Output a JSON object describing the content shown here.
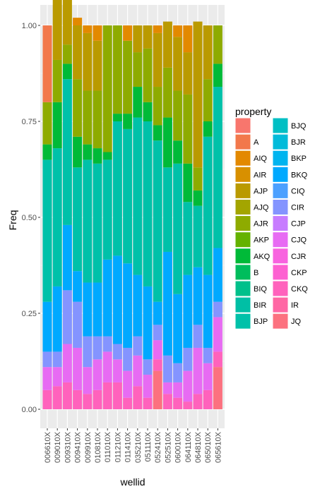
{
  "chart_data": {
    "type": "bar",
    "stacked": true,
    "xlabel": "wellid",
    "ylabel": "Freq",
    "ylim": [
      0,
      1
    ],
    "yticks": [
      "0.00",
      "0.25",
      "0.50",
      "0.75",
      "1.00"
    ],
    "grid": true,
    "legend_position": "right",
    "legend_title": "property",
    "categories": [
      "006610X",
      "009010X",
      "009310X",
      "009410X",
      "009910X",
      "010810X",
      "011010X",
      "011210X",
      "011410X",
      "035210X",
      "051110X",
      "052410X",
      "052510X",
      "060010X",
      "064110X",
      "064810X",
      "065010X",
      "065610X"
    ],
    "series": [
      {
        "name": "",
        "color": "#F8766D",
        "values": [
          0,
          0,
          0,
          0,
          0,
          0,
          0,
          0,
          0,
          0,
          0,
          0,
          0,
          0,
          0,
          0,
          0,
          0
        ]
      },
      {
        "name": "A",
        "color": "#F2784B",
        "values": [
          0.2,
          0,
          0,
          0,
          0,
          0,
          0,
          0,
          0,
          0,
          0,
          0,
          0,
          0,
          0,
          0,
          0,
          0
        ]
      },
      {
        "name": "AIQ",
        "color": "#E38900",
        "values": [
          0,
          0.03,
          0.03,
          0.02,
          0.02,
          0.04,
          0,
          0,
          0.04,
          0,
          0,
          0.02,
          0,
          0.03,
          0.07,
          0,
          0,
          0
        ]
      },
      {
        "name": "AIR",
        "color": "#D89000",
        "values": [
          0,
          0,
          0,
          0,
          0,
          0,
          0,
          0,
          0,
          0,
          0,
          0,
          0,
          0,
          0,
          0,
          0,
          0
        ]
      },
      {
        "name": "AJP",
        "color": "#BA9A00",
        "values": [
          0,
          0.16,
          0.12,
          0.14,
          0.15,
          0.13,
          0,
          0,
          0,
          0.07,
          0.06,
          0.14,
          0.12,
          0.14,
          0.11,
          0.38,
          0.14,
          0
        ]
      },
      {
        "name": "AJQ",
        "color": "#A3A500",
        "values": [
          0,
          0,
          0,
          0,
          0,
          0,
          0,
          0,
          0,
          0,
          0,
          0,
          0,
          0,
          0,
          0,
          0,
          0
        ]
      },
      {
        "name": "AJR",
        "color": "#8EAB00",
        "values": [
          0.11,
          0.11,
          0.05,
          0.15,
          0.14,
          0.15,
          0.33,
          0.23,
          0.19,
          0.09,
          0.14,
          0.1,
          0.13,
          0.13,
          0.18,
          0.06,
          0.11,
          0.1
        ]
      },
      {
        "name": "AKP",
        "color": "#64B200",
        "values": [
          0,
          0,
          0,
          0,
          0,
          0,
          0,
          0,
          0,
          0,
          0,
          0,
          0,
          0,
          0,
          0,
          0,
          0
        ]
      },
      {
        "name": "AKQ",
        "color": "#00BA38",
        "values": [
          0.04,
          0.12,
          0.04,
          0.08,
          0.04,
          0.04,
          0.02,
          0.02,
          0.04,
          0.08,
          0.05,
          0.04,
          0.13,
          0.06,
          0.1,
          0.04,
          0.04,
          0.06
        ]
      },
      {
        "name": "B",
        "color": "#00BD5C",
        "values": [
          0,
          0,
          0,
          0,
          0,
          0,
          0,
          0,
          0,
          0,
          0,
          0,
          0,
          0,
          0,
          0,
          0,
          0
        ]
      },
      {
        "name": "BIQ",
        "color": "#00C08B",
        "values": [
          0,
          0,
          0,
          0,
          0,
          0,
          0,
          0,
          0,
          0,
          0,
          0,
          0,
          0,
          0,
          0,
          0,
          0
        ]
      },
      {
        "name": "BIR",
        "color": "#00BFA5",
        "values": [
          0,
          0,
          0,
          0,
          0,
          0,
          0,
          0,
          0,
          0,
          0,
          0,
          0,
          0,
          0,
          0,
          0,
          0
        ]
      },
      {
        "name": "BJP",
        "color": "#00C1A9",
        "values": [
          0.37,
          0.36,
          0.38,
          0.27,
          0.32,
          0.31,
          0.26,
          0.35,
          0.35,
          0.41,
          0.43,
          0.42,
          0.22,
          0.34,
          0.19,
          0.16,
          0.36,
          0.42
        ]
      },
      {
        "name": "BJQ",
        "color": "#00BFC4",
        "values": [
          0,
          0,
          0,
          0,
          0,
          0,
          0,
          0,
          0,
          0,
          0,
          0,
          0,
          0,
          0,
          0,
          0,
          0
        ]
      },
      {
        "name": "BJR",
        "color": "#00BBDA",
        "values": [
          0,
          0,
          0,
          0,
          0,
          0,
          0,
          0,
          0,
          0,
          0,
          0,
          0,
          0,
          0,
          0,
          0,
          0
        ]
      },
      {
        "name": "BKP",
        "color": "#00B4EF",
        "values": [
          0,
          0,
          0,
          0,
          0,
          0,
          0,
          0,
          0,
          0,
          0,
          0,
          0,
          0,
          0,
          0,
          0,
          0
        ]
      },
      {
        "name": "BKQ",
        "color": "#00A9FF",
        "values": [
          0.13,
          0.17,
          0.17,
          0.08,
          0.14,
          0.14,
          0.2,
          0.23,
          0.22,
          0.16,
          0.19,
          0.06,
          0.27,
          0.18,
          0.19,
          0.15,
          0.19,
          0.14
        ]
      },
      {
        "name": "CIQ",
        "color": "#4CA0FF",
        "values": [
          0,
          0,
          0,
          0,
          0,
          0,
          0,
          0,
          0,
          0,
          0,
          0,
          0,
          0,
          0,
          0,
          0,
          0
        ]
      },
      {
        "name": "CIR",
        "color": "#8494FF",
        "values": [
          0.04,
          0.04,
          0.14,
          0.12,
          0.08,
          0.06,
          0.04,
          0.04,
          0.06,
          0.05,
          0.04,
          0.04,
          0.07,
          0.05,
          0.06,
          0.06,
          0.04,
          0.04
        ]
      },
      {
        "name": "CJP",
        "color": "#C77CFF",
        "values": [
          0,
          0,
          0,
          0,
          0,
          0,
          0,
          0,
          0,
          0,
          0,
          0,
          0,
          0,
          0,
          0,
          0,
          0
        ]
      },
      {
        "name": "CJQ",
        "color": "#E76BF3",
        "values": [
          0.06,
          0.05,
          0.1,
          0.11,
          0.07,
          0.08,
          0.08,
          0.06,
          0.07,
          0.08,
          0.06,
          0.05,
          0.03,
          0.04,
          0.08,
          0.12,
          0.07,
          0.09
        ]
      },
      {
        "name": "CJR",
        "color": "#F863DF",
        "values": [
          0,
          0,
          0,
          0,
          0,
          0,
          0,
          0,
          0,
          0,
          0,
          0,
          0,
          0,
          0,
          0,
          0,
          0
        ]
      },
      {
        "name": "CKP",
        "color": "#FD61D1",
        "values": [
          0,
          0,
          0,
          0,
          0,
          0,
          0,
          0,
          0,
          0,
          0,
          0,
          0,
          0,
          0,
          0,
          0,
          0
        ]
      },
      {
        "name": "CKQ",
        "color": "#FF62BC",
        "values": [
          0.05,
          0.06,
          0.07,
          0.05,
          0.04,
          0.05,
          0.07,
          0.07,
          0.03,
          0.06,
          0.03,
          0.03,
          0.04,
          0.03,
          0.02,
          0.04,
          0.05,
          0.04
        ]
      },
      {
        "name": "IR",
        "color": "#FF67A4",
        "values": [
          0,
          0,
          0,
          0,
          0,
          0,
          0,
          0,
          0,
          0,
          0,
          0,
          0,
          0,
          0,
          0,
          0,
          0
        ]
      },
      {
        "name": "JQ",
        "color": "#FC717F",
        "values": [
          0,
          0,
          0,
          0,
          0,
          0,
          0,
          0,
          0,
          0,
          0,
          0.1,
          0,
          0,
          0,
          0,
          0,
          0.11
        ]
      }
    ]
  }
}
